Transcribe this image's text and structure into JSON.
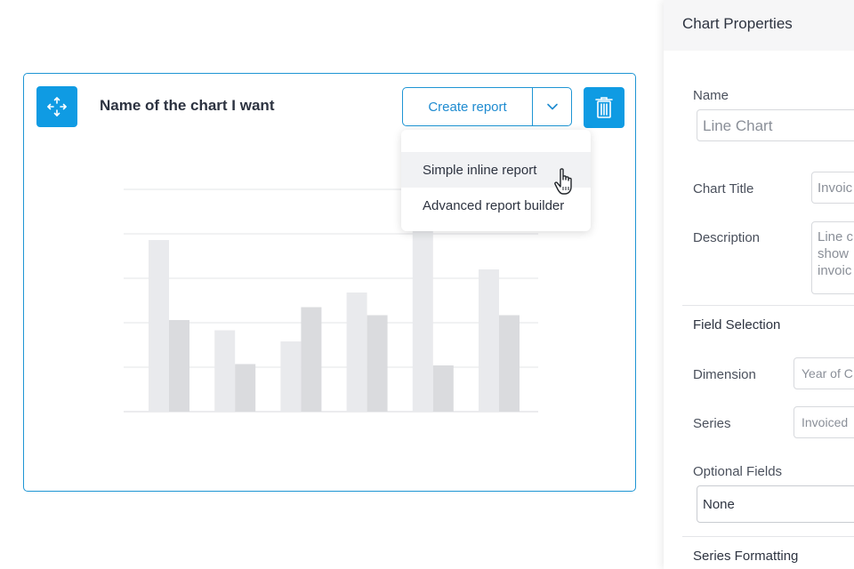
{
  "card": {
    "title": "Name of the chart I want",
    "create_report_label": "Create report",
    "move_icon": "move-arrows-icon",
    "caret_icon": "chevron-down-icon",
    "delete_icon": "trash-icon"
  },
  "dropdown": {
    "items": [
      {
        "label": "Simple inline report",
        "hovered": true
      },
      {
        "label": "Advanced report builder",
        "hovered": false
      }
    ]
  },
  "colors": {
    "accent": "#0f9be3",
    "bar_light": "#e9eaed",
    "bar_dark": "#dadbde"
  },
  "chart_data": {
    "type": "bar",
    "categories": [
      "",
      "",
      "",
      "",
      "",
      ""
    ],
    "series": [
      {
        "values": [
          3.86,
          1.83,
          1.58,
          2.68,
          4.3,
          3.2
        ]
      },
      {
        "values": [
          2.06,
          1.07,
          2.35,
          2.17,
          1.04,
          2.17
        ]
      }
    ],
    "ylim": [
      0,
      5
    ],
    "grid": true,
    "title": "",
    "xlabel": "",
    "ylabel": ""
  },
  "panel": {
    "title": "Chart Properties",
    "name_label": "Name",
    "name_value": "Line Chart",
    "chart_title_label": "Chart Title",
    "chart_title_value": "Invoic",
    "description_label": "Description",
    "description_value": "Line c show invoic",
    "field_selection_label": "Field Selection",
    "dimension_label": "Dimension",
    "dimension_value": "Year of C",
    "series_label": "Series",
    "series_value": "Invoiced",
    "optional_fields_label": "Optional Fields",
    "optional_fields_value": "None",
    "series_formatting_label": "Series Formatting"
  }
}
